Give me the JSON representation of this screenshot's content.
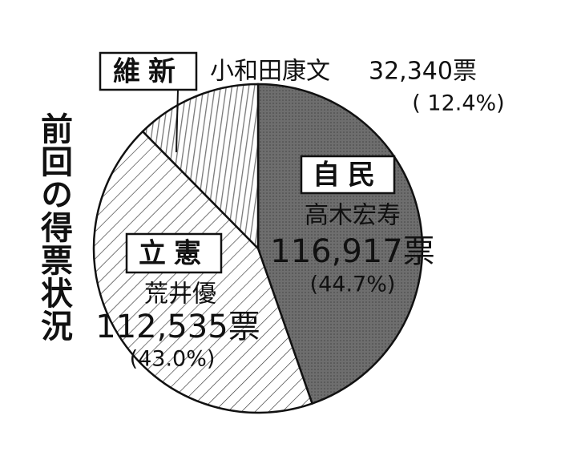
{
  "chart_data": {
    "type": "pie",
    "title": "前回の得票状況",
    "categories": [
      "自民",
      "立憲",
      "維新"
    ],
    "names": [
      "高木宏寿",
      "荒井優",
      "小和田康文"
    ],
    "values": [
      44.7,
      43.0,
      12.4
    ],
    "value_labels": [
      "(44.7%)",
      "(43.0%)",
      "( 12.4%)"
    ],
    "votes": [
      116917,
      112535,
      32340
    ],
    "vote_labels": [
      "116,917票",
      "112,535票",
      "32,340票"
    ]
  }
}
